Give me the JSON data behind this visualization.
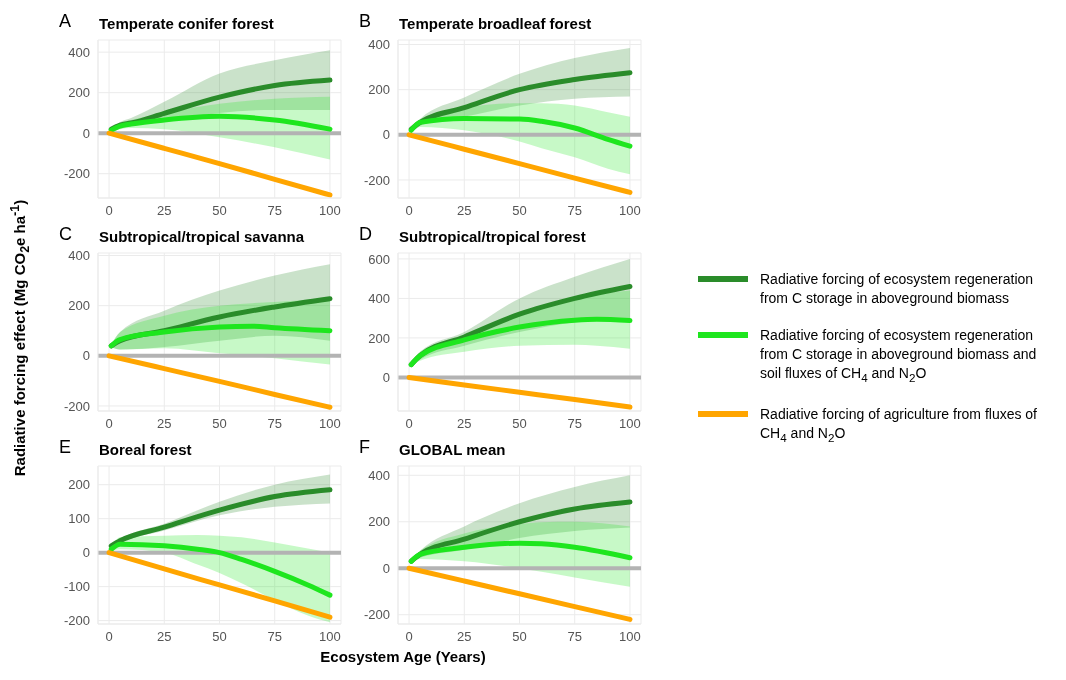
{
  "chart_data": [
    {
      "type": "line",
      "title": "Temperate conifer forest",
      "annotations": [
        "A"
      ],
      "legend": "right",
      "grid": true,
      "xlim": [
        -5,
        105
      ],
      "xticks": [
        0,
        25,
        50,
        75,
        100
      ],
      "ylim": [
        -320,
        460
      ],
      "yticks": [
        -200,
        0,
        200,
        400
      ],
      "ref_lines": [
        {
          "axis": "y",
          "value": 0,
          "color": "#b3b3b3"
        }
      ],
      "series": [
        {
          "name": "Radiative forcing of ecosystem regeneration from C storage in aboveground biomass",
          "color": "#2a8c2a",
          "x": [
            1,
            5,
            10,
            25,
            50,
            75,
            100
          ],
          "values": [
            20,
            40,
            50,
            98,
            178,
            235,
            262
          ],
          "lower": [
            18,
            25,
            35,
            60,
            100,
            115,
            115
          ],
          "upper": [
            22,
            55,
            75,
            155,
            295,
            360,
            410
          ]
        },
        {
          "name": "Radiative forcing of ecosystem regeneration from C storage in aboveground biomass and soil fluxes of CH$_{4}$ and N$_{2}$O",
          "color": "#1ee61e",
          "x": [
            1,
            5,
            10,
            25,
            50,
            75,
            100
          ],
          "values": [
            15,
            35,
            45,
            65,
            83,
            65,
            20
          ],
          "lower": [
            12,
            20,
            25,
            20,
            -20,
            -70,
            -130
          ],
          "upper": [
            18,
            50,
            65,
            100,
            145,
            170,
            180
          ]
        },
        {
          "name": "Radiative forcing of agriculture from fluxes of CH$_{4}$ and N$_{2}$O",
          "color": "#ffa500",
          "x": [
            0,
            25,
            50,
            75,
            100
          ],
          "values": [
            0,
            -75,
            -150,
            -228,
            -305
          ]
        }
      ]
    },
    {
      "type": "line",
      "title": "Temperate broadleaf forest",
      "annotations": [
        "B"
      ],
      "grid": true,
      "xlim": [
        -5,
        105
      ],
      "xticks": [
        0,
        25,
        50,
        75,
        100
      ],
      "ylim": [
        -280,
        420
      ],
      "yticks": [
        -200,
        0,
        200,
        400
      ],
      "ref_lines": [
        {
          "axis": "y",
          "value": 0,
          "color": "#b3b3b3"
        }
      ],
      "series": [
        {
          "color": "#2a8c2a",
          "x": [
            1,
            5,
            25,
            50,
            75,
            100
          ],
          "values": [
            25,
            55,
            120,
            200,
            245,
            275
          ],
          "lower": [
            20,
            40,
            80,
            130,
            160,
            170
          ],
          "upper": [
            30,
            70,
            165,
            270,
            340,
            385
          ]
        },
        {
          "color": "#1ee61e",
          "x": [
            1,
            5,
            25,
            50,
            60,
            75,
            90,
            100
          ],
          "values": [
            20,
            55,
            72,
            70,
            60,
            30,
            -20,
            -50
          ],
          "lower": [
            15,
            35,
            20,
            -30,
            -60,
            -100,
            -150,
            -175
          ],
          "upper": [
            25,
            70,
            120,
            140,
            140,
            130,
            100,
            80
          ]
        },
        {
          "color": "#ffa500",
          "x": [
            0,
            25,
            50,
            75,
            100
          ],
          "values": [
            0,
            -64,
            -128,
            -192,
            -255
          ]
        }
      ]
    },
    {
      "type": "line",
      "title": "Subtropical/tropical savanna",
      "annotations": [
        "C"
      ],
      "ylabel": "Radiative forcing effect (Mg CO$_{2}$e ha$^{-1}$)",
      "grid": true,
      "xlim": [
        -5,
        105
      ],
      "xticks": [
        0,
        25,
        50,
        75,
        100
      ],
      "ylim": [
        -220,
        410
      ],
      "yticks": [
        -200,
        0,
        200,
        400
      ],
      "ref_lines": [
        {
          "axis": "y",
          "value": 0,
          "color": "#b3b3b3"
        }
      ],
      "series": [
        {
          "color": "#2a8c2a",
          "x": [
            1,
            5,
            25,
            50,
            75,
            100
          ],
          "values": [
            40,
            60,
            100,
            155,
            195,
            228
          ],
          "lower": [
            35,
            25,
            35,
            60,
            80,
            60
          ],
          "upper": [
            45,
            95,
            180,
            260,
            320,
            365
          ]
        },
        {
          "color": "#1ee61e",
          "x": [
            1,
            5,
            25,
            50,
            65,
            75,
            100
          ],
          "values": [
            40,
            65,
            95,
            115,
            118,
            112,
            100
          ],
          "lower": [
            35,
            25,
            30,
            10,
            0,
            -10,
            -35
          ],
          "upper": [
            45,
            95,
            160,
            200,
            210,
            215,
            230
          ]
        },
        {
          "color": "#ffa500",
          "x": [
            0,
            25,
            50,
            75,
            100
          ],
          "values": [
            0,
            -51,
            -102,
            -154,
            -205
          ]
        }
      ]
    },
    {
      "type": "line",
      "title": "Subtropical/tropical forest",
      "annotations": [
        "D"
      ],
      "grid": true,
      "xlim": [
        -5,
        105
      ],
      "xticks": [
        0,
        25,
        50,
        75,
        100
      ],
      "ylim": [
        -170,
        630
      ],
      "yticks": [
        0,
        200,
        400,
        600
      ],
      "ref_lines": [
        {
          "axis": "y",
          "value": 0,
          "color": "#b3b3b3"
        }
      ],
      "series": [
        {
          "color": "#2a8c2a",
          "x": [
            1,
            5,
            25,
            50,
            75,
            100
          ],
          "values": [
            65,
            110,
            205,
            320,
            400,
            460
          ],
          "lower": [
            60,
            90,
            160,
            230,
            280,
            300
          ],
          "upper": [
            70,
            130,
            230,
            400,
            510,
            600
          ]
        },
        {
          "color": "#1ee61e",
          "x": [
            1,
            5,
            25,
            50,
            75,
            85,
            100
          ],
          "values": [
            65,
            110,
            190,
            255,
            290,
            295,
            288
          ],
          "lower": [
            60,
            85,
            130,
            160,
            165,
            160,
            145
          ],
          "upper": [
            70,
            130,
            210,
            330,
            400,
            420,
            440
          ]
        },
        {
          "color": "#ffa500",
          "x": [
            0,
            25,
            50,
            75,
            100
          ],
          "values": [
            0,
            -38,
            -75,
            -112,
            -150
          ]
        }
      ]
    },
    {
      "type": "line",
      "title": "Boreal forest",
      "annotations": [
        "E"
      ],
      "xlabel": "Ecosystem Age (Years)",
      "grid": true,
      "xlim": [
        -5,
        105
      ],
      "xticks": [
        0,
        25,
        50,
        75,
        100
      ],
      "ylim": [
        -210,
        255
      ],
      "yticks": [
        -200,
        -100,
        0,
        100,
        200
      ],
      "ref_lines": [
        {
          "axis": "y",
          "value": 0,
          "color": "#b3b3b3"
        }
      ],
      "series": [
        {
          "color": "#2a8c2a",
          "x": [
            1,
            5,
            25,
            50,
            75,
            100
          ],
          "values": [
            20,
            35,
            75,
            125,
            165,
            185
          ],
          "lower": [
            18,
            30,
            65,
            110,
            135,
            145
          ],
          "upper": [
            22,
            40,
            85,
            150,
            200,
            230
          ]
        },
        {
          "color": "#1ee61e",
          "x": [
            1,
            5,
            25,
            40,
            50,
            60,
            75,
            90,
            100
          ],
          "values": [
            10,
            25,
            20,
            10,
            0,
            -20,
            -55,
            -95,
            -125
          ],
          "lower": [
            5,
            10,
            0,
            -35,
            -60,
            -90,
            -140,
            -185,
            -205
          ],
          "upper": [
            15,
            45,
            50,
            52,
            50,
            45,
            30,
            12,
            0
          ]
        },
        {
          "color": "#ffa500",
          "x": [
            0,
            25,
            50,
            75,
            100
          ],
          "values": [
            0,
            -48,
            -95,
            -142,
            -190
          ]
        }
      ]
    },
    {
      "type": "line",
      "title": "GLOBAL mean",
      "annotations": [
        "F"
      ],
      "grid": true,
      "xlim": [
        -5,
        105
      ],
      "xticks": [
        0,
        25,
        50,
        75,
        100
      ],
      "ylim": [
        -240,
        440
      ],
      "yticks": [
        -200,
        0,
        200,
        400
      ],
      "ref_lines": [
        {
          "axis": "y",
          "value": 0,
          "color": "#b3b3b3"
        }
      ],
      "series": [
        {
          "color": "#2a8c2a",
          "x": [
            1,
            5,
            25,
            50,
            75,
            100
          ],
          "values": [
            30,
            60,
            125,
            200,
            255,
            285
          ],
          "lower": [
            25,
            45,
            80,
            130,
            160,
            175
          ],
          "upper": [
            35,
            75,
            180,
            280,
            350,
            400
          ]
        },
        {
          "color": "#1ee61e",
          "x": [
            1,
            5,
            25,
            50,
            60,
            75,
            100
          ],
          "values": [
            30,
            60,
            90,
            108,
            105,
            90,
            45
          ],
          "lower": [
            25,
            40,
            30,
            0,
            -15,
            -40,
            -80
          ],
          "upper": [
            35,
            75,
            150,
            190,
            198,
            200,
            180
          ]
        },
        {
          "color": "#ffa500",
          "x": [
            0,
            25,
            50,
            75,
            100
          ],
          "values": [
            0,
            -55,
            -110,
            -165,
            -220
          ]
        }
      ]
    }
  ]
}
